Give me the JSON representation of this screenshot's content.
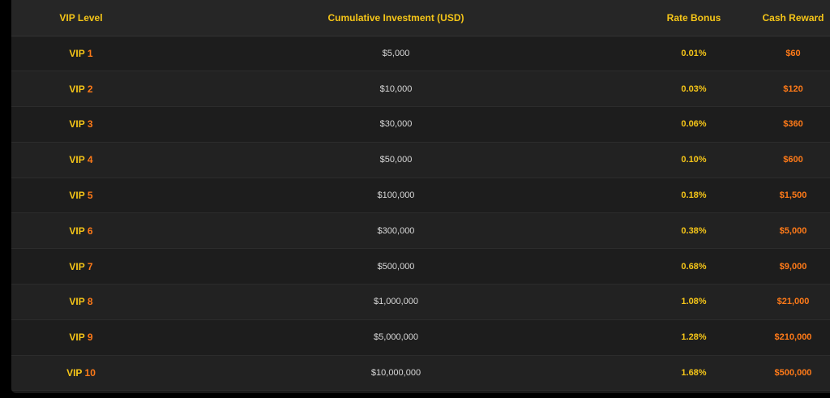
{
  "headers": {
    "vip_level": "VIP Level",
    "investment": "Cumulative Investment (USD)",
    "rate_bonus": "Rate Bonus",
    "cash_reward": "Cash Reward"
  },
  "rows": [
    {
      "vip": "VIP",
      "num": "1",
      "investment": "$5,000",
      "bonus": "0.01%",
      "reward": "$60"
    },
    {
      "vip": "VIP",
      "num": "2",
      "investment": "$10,000",
      "bonus": "0.03%",
      "reward": "$120"
    },
    {
      "vip": "VIP",
      "num": "3",
      "investment": "$30,000",
      "bonus": "0.06%",
      "reward": "$360"
    },
    {
      "vip": "VIP",
      "num": "4",
      "investment": "$50,000",
      "bonus": "0.10%",
      "reward": "$600"
    },
    {
      "vip": "VIP",
      "num": "5",
      "investment": "$100,000",
      "bonus": "0.18%",
      "reward": "$1,500"
    },
    {
      "vip": "VIP",
      "num": "6",
      "investment": "$300,000",
      "bonus": "0.38%",
      "reward": "$5,000"
    },
    {
      "vip": "VIP",
      "num": "7",
      "investment": "$500,000",
      "bonus": "0.68%",
      "reward": "$9,000"
    },
    {
      "vip": "VIP",
      "num": "8",
      "investment": "$1,000,000",
      "bonus": "1.08%",
      "reward": "$21,000"
    },
    {
      "vip": "VIP",
      "num": "9",
      "investment": "$5,000,000",
      "bonus": "1.28%",
      "reward": "$210,000"
    },
    {
      "vip": "VIP",
      "num": "10",
      "investment": "$10,000,000",
      "bonus": "1.68%",
      "reward": "$500,000"
    }
  ],
  "colors": {
    "gold": "#f5c518",
    "orange": "#ff7a18",
    "background": "#1c1c1c"
  }
}
